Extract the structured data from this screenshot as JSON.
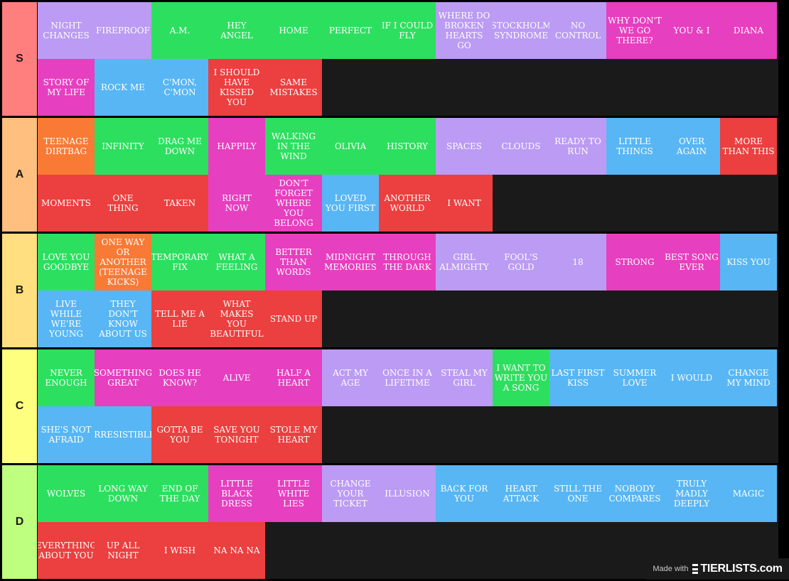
{
  "tiers": [
    {
      "label": "S",
      "color": "#ff7f7f",
      "items": [
        {
          "text": "Night Changes",
          "color": "purple"
        },
        {
          "text": "Fireproof",
          "color": "purple"
        },
        {
          "text": "A.M.",
          "color": "green"
        },
        {
          "text": "Hey Angel",
          "color": "green"
        },
        {
          "text": "Home",
          "color": "green"
        },
        {
          "text": "Perfect",
          "color": "green"
        },
        {
          "text": "If I Could Fly",
          "color": "green"
        },
        {
          "text": "Where Do Broken Hearts Go",
          "color": "purple"
        },
        {
          "text": "Stockholm Syndrome",
          "color": "purple"
        },
        {
          "text": "No Control",
          "color": "purple"
        },
        {
          "text": "Why Don't We Go There?",
          "color": "pink"
        },
        {
          "text": "You & I",
          "color": "pink"
        },
        {
          "text": "Diana",
          "color": "pink"
        },
        {
          "text": "Story Of My Life",
          "color": "pink"
        },
        {
          "text": "Rock Me",
          "color": "blue"
        },
        {
          "text": "C'mon, C'mon",
          "color": "blue"
        },
        {
          "text": "I Should Have Kissed You",
          "color": "red"
        },
        {
          "text": "Same Mistakes",
          "color": "red"
        }
      ]
    },
    {
      "label": "A",
      "color": "#ffbf7f",
      "items": [
        {
          "text": "Teenage Dirtbag",
          "color": "orange"
        },
        {
          "text": "Infinity",
          "color": "green"
        },
        {
          "text": "Drag Me Down",
          "color": "green"
        },
        {
          "text": "Happily",
          "color": "pink"
        },
        {
          "text": "Walking In The Wind",
          "color": "green"
        },
        {
          "text": "Olivia",
          "color": "green"
        },
        {
          "text": "History",
          "color": "green"
        },
        {
          "text": "Spaces",
          "color": "purple"
        },
        {
          "text": "Clouds",
          "color": "purple"
        },
        {
          "text": "Ready To Run",
          "color": "purple"
        },
        {
          "text": "Little Things",
          "color": "blue"
        },
        {
          "text": "Over Again",
          "color": "blue"
        },
        {
          "text": "More Than This",
          "color": "red"
        },
        {
          "text": "Moments",
          "color": "red"
        },
        {
          "text": "One Thing",
          "color": "red"
        },
        {
          "text": "Taken",
          "color": "red"
        },
        {
          "text": "Right Now",
          "color": "pink"
        },
        {
          "text": "Don't Forget Where You Belong",
          "color": "pink"
        },
        {
          "text": "Loved You First",
          "color": "blue"
        },
        {
          "text": "Another World",
          "color": "red"
        },
        {
          "text": "I Want",
          "color": "red"
        }
      ]
    },
    {
      "label": "B",
      "color": "#ffdf7f",
      "items": [
        {
          "text": "Love You Goodbye",
          "color": "green"
        },
        {
          "text": "One Way Or Another (Teenage Kicks)",
          "color": "orange"
        },
        {
          "text": "Temporary Fix",
          "color": "green"
        },
        {
          "text": "What A Feeling",
          "color": "green"
        },
        {
          "text": "Better Than Words",
          "color": "pink"
        },
        {
          "text": "Midnight Memories",
          "color": "pink"
        },
        {
          "text": "Through The Dark",
          "color": "pink"
        },
        {
          "text": "Girl Almighty",
          "color": "purple"
        },
        {
          "text": "Fool's Gold",
          "color": "purple"
        },
        {
          "text": "18",
          "color": "purple"
        },
        {
          "text": "Strong",
          "color": "pink"
        },
        {
          "text": "Best Song Ever",
          "color": "pink"
        },
        {
          "text": "Kiss You",
          "color": "blue"
        },
        {
          "text": "Live While We're Young",
          "color": "blue"
        },
        {
          "text": "They Don't Know About Us",
          "color": "blue"
        },
        {
          "text": "Tell Me A Lie",
          "color": "red"
        },
        {
          "text": "What Makes You Beautiful",
          "color": "red"
        },
        {
          "text": "Stand Up",
          "color": "red"
        }
      ]
    },
    {
      "label": "C",
      "color": "#ffff7f",
      "items": [
        {
          "text": "Never Enough",
          "color": "green"
        },
        {
          "text": "Something Great",
          "color": "pink"
        },
        {
          "text": "Does He Know?",
          "color": "pink"
        },
        {
          "text": "Alive",
          "color": "pink"
        },
        {
          "text": "Half A Heart",
          "color": "pink"
        },
        {
          "text": "Act My Age",
          "color": "purple"
        },
        {
          "text": "Once In A Lifetime",
          "color": "purple"
        },
        {
          "text": "Steal My Girl",
          "color": "purple"
        },
        {
          "text": "I Want To Write You A Song",
          "color": "green"
        },
        {
          "text": "Last First Kiss",
          "color": "blue"
        },
        {
          "text": "Summer Love",
          "color": "blue"
        },
        {
          "text": "I Would",
          "color": "blue"
        },
        {
          "text": "Change My Mind",
          "color": "blue"
        },
        {
          "text": "She's Not Afraid",
          "color": "blue"
        },
        {
          "text": "Irresistible",
          "color": "blue"
        },
        {
          "text": "Gotta Be You",
          "color": "red"
        },
        {
          "text": "Save You Tonight",
          "color": "red"
        },
        {
          "text": "Stole My Heart",
          "color": "red"
        }
      ]
    },
    {
      "label": "D",
      "color": "#bfff7f",
      "items": [
        {
          "text": "Wolves",
          "color": "green"
        },
        {
          "text": "Long Way Down",
          "color": "green"
        },
        {
          "text": "End Of The Day",
          "color": "green"
        },
        {
          "text": "Little Black Dress",
          "color": "pink"
        },
        {
          "text": "Little White Lies",
          "color": "pink"
        },
        {
          "text": "Change Your Ticket",
          "color": "purple"
        },
        {
          "text": "Illusion",
          "color": "purple"
        },
        {
          "text": "Back For You",
          "color": "blue"
        },
        {
          "text": "Heart Attack",
          "color": "blue"
        },
        {
          "text": "Still The One",
          "color": "blue"
        },
        {
          "text": "Nobody Compares",
          "color": "blue"
        },
        {
          "text": "Truly Madly Deeply",
          "color": "blue"
        },
        {
          "text": "Magic",
          "color": "blue"
        },
        {
          "text": "Everything About You",
          "color": "red"
        },
        {
          "text": "Up All Night",
          "color": "red"
        },
        {
          "text": "I Wish",
          "color": "red"
        },
        {
          "text": "Na Na Na",
          "color": "red"
        }
      ]
    }
  ],
  "watermark": {
    "made_with": "Made with",
    "brand": "TIERLISTS.com",
    "logo_icon": "tier-bars-icon"
  }
}
